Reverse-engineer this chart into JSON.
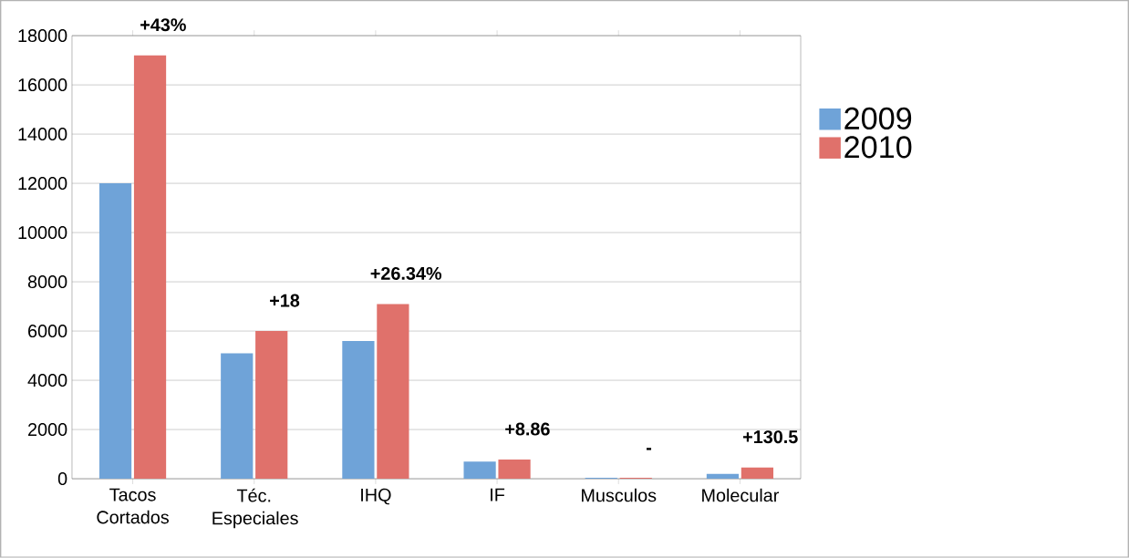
{
  "chart_data": {
    "type": "bar",
    "categories": [
      "Tacos Cortados",
      "Téc. Especiales",
      "IHQ",
      "IF",
      "Musculos",
      "Molecular"
    ],
    "series": [
      {
        "name": "2009",
        "color": "#6fa3d8",
        "values": [
          12000,
          5100,
          5600,
          700,
          40,
          200
        ]
      },
      {
        "name": "2010",
        "color": "#e0716b",
        "values": [
          17200,
          6000,
          7100,
          780,
          40,
          460
        ]
      }
    ],
    "ylim": [
      0,
      18000
    ],
    "yticks": [
      0,
      2000,
      4000,
      6000,
      8000,
      10000,
      12000,
      14000,
      16000,
      18000
    ],
    "grid": "y",
    "legend": "right",
    "annotations": [
      {
        "text": "+43%",
        "x": "Tacos Cortados",
        "y": 17200
      },
      {
        "text": "+18",
        "x": "Téc. Especiales",
        "y": 6000
      },
      {
        "text": "+26.34%",
        "x": "IHQ",
        "y": 7100
      },
      {
        "text": "+8.86",
        "x": "IF",
        "y": 780
      },
      {
        "text": "-",
        "x": "Musculos",
        "y": 40
      },
      {
        "text": "+130.5",
        "x": "Molecular",
        "y": 460
      }
    ]
  }
}
